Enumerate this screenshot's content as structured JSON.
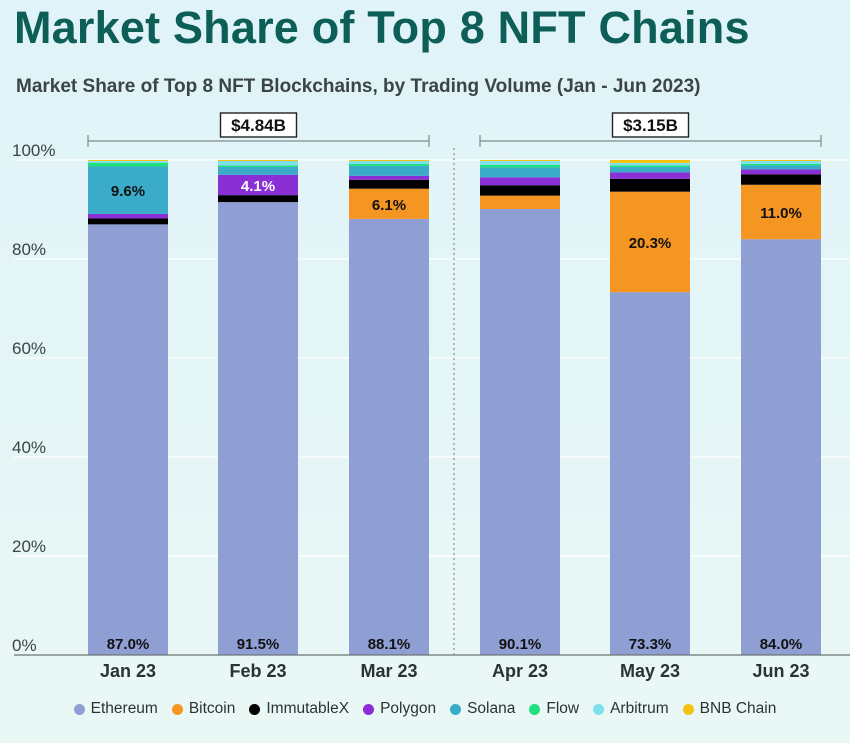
{
  "title": "Market Share of Top 8 NFT Chains",
  "subtitle": "Market Share of Top 8 NFT Blockchains, by Trading Volume (Jan - Jun 2023)",
  "colors": {
    "Ethereum": "#8f9fd4",
    "Bitcoin": "#f59522",
    "ImmutableX": "#000000",
    "Polygon": "#8a2fd6",
    "Solana": "#3aabc9",
    "Flow": "#1ee07f",
    "Arbitrum": "#7ee0ea",
    "BNB Chain": "#f5c211"
  },
  "chart_data": {
    "type": "bar",
    "stacked": true,
    "categories": [
      "Jan 23",
      "Feb 23",
      "Mar 23",
      "Apr 23",
      "May 23",
      "Jun 23"
    ],
    "series": [
      {
        "name": "Ethereum",
        "values": [
          87.0,
          91.5,
          88.1,
          90.1,
          73.3,
          84.0
        ]
      },
      {
        "name": "Bitcoin",
        "values": [
          0.0,
          0.0,
          6.1,
          2.7,
          20.3,
          11.0
        ]
      },
      {
        "name": "ImmutableX",
        "values": [
          1.2,
          1.4,
          1.8,
          2.1,
          2.6,
          2.1
        ]
      },
      {
        "name": "Polygon",
        "values": [
          0.9,
          4.1,
          0.8,
          1.6,
          1.3,
          1.0
        ]
      },
      {
        "name": "Solana",
        "values": [
          9.6,
          1.6,
          2.0,
          2.0,
          1.1,
          0.8
        ]
      },
      {
        "name": "Flow",
        "values": [
          0.7,
          0.3,
          0.4,
          0.5,
          0.3,
          0.3
        ]
      },
      {
        "name": "Arbitrum",
        "values": [
          0.4,
          0.9,
          0.6,
          0.8,
          0.5,
          0.6
        ]
      },
      {
        "name": "BNB Chain",
        "values": [
          0.2,
          0.2,
          0.2,
          0.2,
          0.6,
          0.2
        ]
      }
    ],
    "data_labels": [
      {
        "category": "Jan 23",
        "series": "Ethereum",
        "text": "87.0%"
      },
      {
        "category": "Feb 23",
        "series": "Ethereum",
        "text": "91.5%"
      },
      {
        "category": "Mar 23",
        "series": "Ethereum",
        "text": "88.1%"
      },
      {
        "category": "Apr 23",
        "series": "Ethereum",
        "text": "90.1%"
      },
      {
        "category": "May 23",
        "series": "Ethereum",
        "text": "73.3%"
      },
      {
        "category": "Jun 23",
        "series": "Ethereum",
        "text": "84.0%"
      },
      {
        "category": "Jan 23",
        "series": "Solana",
        "text": "9.6%"
      },
      {
        "category": "Feb 23",
        "series": "Polygon",
        "text": "4.1%"
      },
      {
        "category": "Mar 23",
        "series": "Bitcoin",
        "text": "6.1%"
      },
      {
        "category": "May 23",
        "series": "Bitcoin",
        "text": "20.3%"
      },
      {
        "category": "Jun 23",
        "series": "Bitcoin",
        "text": "11.0%"
      }
    ],
    "ylim": [
      0,
      100
    ],
    "yticks": [
      "0%",
      "20%",
      "40%",
      "60%",
      "80%",
      "100%"
    ],
    "brackets": [
      {
        "label": "$4.84B",
        "from": "Jan 23",
        "to": "Mar 23"
      },
      {
        "label": "$3.15B",
        "from": "Apr 23",
        "to": "Jun 23"
      }
    ],
    "legend": [
      "Ethereum",
      "Bitcoin",
      "ImmutableX",
      "Polygon",
      "Solana",
      "Flow",
      "Arbitrum",
      "BNB Chain"
    ],
    "legend_position": "bottom"
  }
}
